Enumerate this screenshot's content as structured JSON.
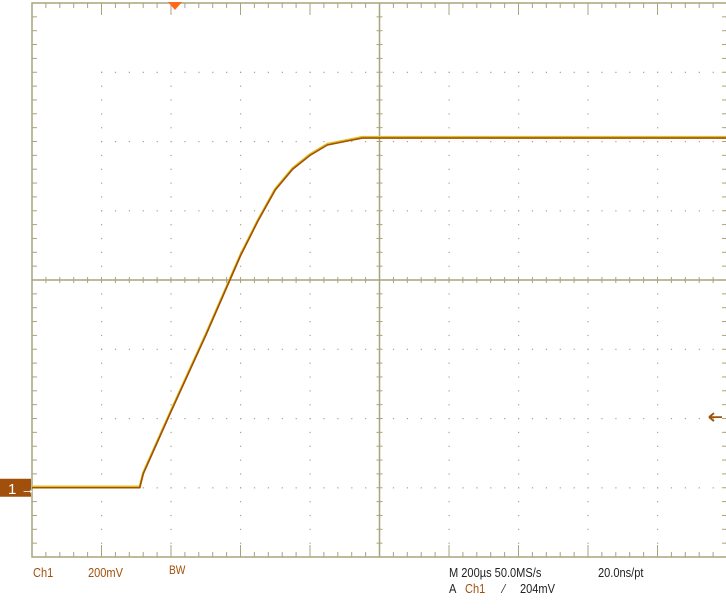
{
  "chart_data": {
    "type": "line",
    "title": "",
    "xlabel": "",
    "ylabel": "",
    "x_unit": "µs",
    "y_unit": "V",
    "xlim": [
      0,
      2000
    ],
    "ylim": [
      -0.2,
      1.4
    ],
    "grid": true,
    "x_divisions": 10,
    "y_divisions": 8,
    "series": [
      {
        "x": [
          0,
          100,
          200,
          310,
          320,
          400,
          500,
          600,
          650,
          700,
          750,
          800,
          850,
          900,
          950,
          1000,
          1100,
          1200,
          1400,
          1600,
          1800,
          2000
        ],
        "y": [
          0.0,
          0.0,
          0.0,
          0.0,
          0.04,
          0.22,
          0.44,
          0.67,
          0.77,
          0.86,
          0.92,
          0.96,
          0.99,
          1.0,
          1.01,
          1.01,
          1.01,
          1.01,
          1.01,
          1.01,
          1.01,
          1.01
        ]
      }
    ],
    "trace_color": "#a0500a",
    "ground_marker": "1",
    "trigger_level_v": 0.204
  },
  "status": {
    "channel": "Ch1",
    "volts_per_div": "200mV",
    "bandwidth_limit": "BW",
    "timebase": "M 200µs 50.0MS/s",
    "resolution": "20.0ns/pt",
    "trigger_prefix": "A",
    "trigger_source": "Ch1",
    "trigger_slope": "⁄",
    "trigger_level": "204mV"
  }
}
